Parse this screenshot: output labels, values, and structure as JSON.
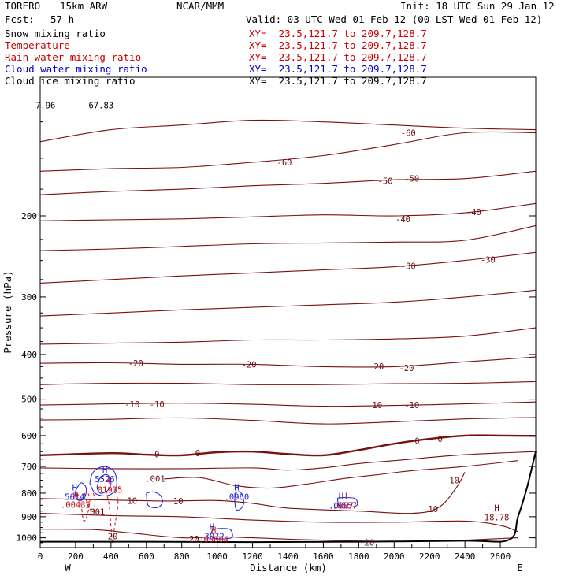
{
  "header": {
    "model": "TORERO",
    "resolution": "15km ARW",
    "center": "NCAR/MMM",
    "init": "Init: 18 UTC Sun 29 Jan 12",
    "fcst_label": "Fcst:",
    "fcst_value": "57 h",
    "valid": "Valid: 03 UTC Wed 01 Feb 12 (00 LST Wed 01 Feb 12)"
  },
  "fields": [
    {
      "label": "Snow mixing ratio",
      "xy": "XY=  23.5,121.7 to 209.7,128.7",
      "color": "#000000"
    },
    {
      "label": "Temperature",
      "xy": "XY=  23.5,121.7 to 209.7,128.7",
      "color": "#8b0000"
    },
    {
      "label": "Rain water mixing ratio",
      "xy": "XY=  23.5,121.7 to 209.7,128.7",
      "color": "#cc0000"
    },
    {
      "label": "Cloud water mixing ratio",
      "xy": "XY=  23.5,121.7 to 209.7,128.7",
      "color": "#0000cc"
    },
    {
      "label": "Cloud ice mixing ratio",
      "xy": "XY=  23.5,121.7 to 209.7,128.7",
      "color": "#000000"
    }
  ],
  "chart_data": {
    "type": "contour_cross_section",
    "xlabel": "Distance (km)",
    "ylabel": "Pressure (hPa)",
    "xlim": [
      0,
      2800
    ],
    "ylim": [
      1050,
      100
    ],
    "y_log": true,
    "x_ticks": [
      0,
      200,
      400,
      600,
      800,
      1000,
      1200,
      1400,
      1600,
      1800,
      2000,
      2200,
      2400,
      2600
    ],
    "x_tick_labels": [
      "0",
      "200",
      "400",
      "600",
      "800",
      "1000",
      "1200",
      "1400",
      "1600",
      "1800",
      "2000",
      "2200",
      "2400",
      "2600"
    ],
    "y_ticks": [
      200,
      300,
      400,
      500,
      600,
      700,
      800,
      900,
      1000
    ],
    "y_tick_labels": [
      "200",
      "300",
      "400",
      "500",
      "600",
      "700",
      "800",
      "900",
      "1000"
    ],
    "x_end_labels": {
      "left": "W",
      "right": "E"
    },
    "temperature_labels": [
      {
        "text": "-60",
        "x": 1380,
        "p": 153
      },
      {
        "text": "-60",
        "x": 2080,
        "p": 132
      },
      {
        "text": "-50",
        "x": 1950,
        "p": 168
      },
      {
        "text": "-50",
        "x": 2100,
        "p": 166
      },
      {
        "text": "-40",
        "x": 2050,
        "p": 203
      },
      {
        "text": "-40",
        "x": 2450,
        "p": 196
      },
      {
        "text": "-30",
        "x": 2080,
        "p": 257
      },
      {
        "text": "-30",
        "x": 2530,
        "p": 249
      },
      {
        "text": "-20",
        "x": 540,
        "p": 418
      },
      {
        "text": "-20",
        "x": 1180,
        "p": 420
      },
      {
        "text": "-20",
        "x": 1900,
        "p": 424
      },
      {
        "text": "-20",
        "x": 2070,
        "p": 428
      },
      {
        "text": "-10",
        "x": 520,
        "p": 513
      },
      {
        "text": "-10",
        "x": 660,
        "p": 513
      },
      {
        "text": "-10",
        "x": 1890,
        "p": 515
      },
      {
        "text": "-10",
        "x": 2100,
        "p": 515
      },
      {
        "text": "0",
        "x": 660,
        "p": 659
      },
      {
        "text": "0",
        "x": 890,
        "p": 654
      },
      {
        "text": "0",
        "x": 2130,
        "p": 616
      },
      {
        "text": "0",
        "x": 2260,
        "p": 610
      },
      {
        "text": "10",
        "x": 2340,
        "p": 750
      },
      {
        "text": "10",
        "x": 2220,
        "p": 865
      },
      {
        "text": "10",
        "x": 520,
        "p": 830
      },
      {
        "text": "10",
        "x": 780,
        "p": 832
      },
      {
        "text": "20",
        "x": 410,
        "p": 992
      },
      {
        "text": "20",
        "x": 870,
        "p": 1006
      },
      {
        "text": "20",
        "x": 1860,
        "p": 1023
      },
      {
        "text": ".001",
        "x": 650,
        "p": 744
      },
      {
        "text": ".001",
        "x": 310,
        "p": 878
      }
    ],
    "extrema": [
      {
        "text": "H",
        "value": "5526",
        "x": 365,
        "p": 740,
        "color": "blue"
      },
      {
        "text": "H",
        "value": ".01935",
        "x": 380,
        "p": 780,
        "color": "red"
      },
      {
        "text": "H",
        "value": "5614",
        "x": 195,
        "p": 808,
        "color": "blue"
      },
      {
        "text": "H",
        "value": ".00432",
        "x": 200,
        "p": 840,
        "color": "red"
      },
      {
        "text": "H",
        "value": ".0960",
        "x": 1110,
        "p": 808,
        "color": "blue"
      },
      {
        "text": "H",
        "value": ".0807",
        "x": 1700,
        "p": 843,
        "color": "blue"
      },
      {
        "text": "H",
        "value": ".0557",
        "x": 1720,
        "p": 843,
        "color": "red"
      },
      {
        "text": "H",
        "value": ".3072",
        "x": 970,
        "p": 983,
        "color": "blue"
      },
      {
        "text": "H",
        "value": ".00004",
        "x": 980,
        "p": 1000,
        "color": "red"
      },
      {
        "text": "H",
        "value": "18.78",
        "x": 2580,
        "p": 895,
        "color": "darkred"
      }
    ],
    "corner_values": [
      {
        "text": "7.96",
        "x": 30,
        "p": 115
      },
      {
        "text": "-67.83",
        "x": 330,
        "p": 115
      }
    ],
    "temperature_contours": [
      {
        "level": -60,
        "points": [
          [
            0,
            138
          ],
          [
            400,
            130
          ],
          [
            800,
            127
          ],
          [
            1200,
            124
          ],
          [
            1600,
            125
          ],
          [
            2000,
            127
          ],
          [
            2400,
            129
          ],
          [
            2800,
            130
          ]
        ]
      },
      {
        "level": -60,
        "points": [
          [
            0,
            160
          ],
          [
            400,
            158
          ],
          [
            800,
            157
          ],
          [
            1200,
            153
          ],
          [
            1600,
            148
          ],
          [
            2000,
            140
          ],
          [
            2400,
            132
          ],
          [
            2800,
            132
          ]
        ]
      },
      {
        "level": -55,
        "points": [
          [
            0,
            180
          ],
          [
            400,
            177
          ],
          [
            800,
            175
          ],
          [
            1200,
            172
          ],
          [
            1600,
            170
          ],
          [
            2000,
            167
          ],
          [
            2400,
            166
          ],
          [
            2800,
            160
          ]
        ]
      },
      {
        "level": -50,
        "points": [
          [
            0,
            205
          ],
          [
            400,
            204
          ],
          [
            800,
            203
          ],
          [
            1200,
            201
          ],
          [
            1600,
            199
          ],
          [
            2000,
            200
          ],
          [
            2400,
            197
          ],
          [
            2800,
            188
          ]
        ]
      },
      {
        "level": -40,
        "points": [
          [
            0,
            238
          ],
          [
            400,
            236
          ],
          [
            800,
            233
          ],
          [
            1200,
            230
          ],
          [
            1600,
            229
          ],
          [
            2000,
            228
          ],
          [
            2400,
            226
          ],
          [
            2800,
            210
          ]
        ]
      },
      {
        "level": -30,
        "points": [
          [
            0,
            280
          ],
          [
            400,
            275
          ],
          [
            800,
            270
          ],
          [
            1200,
            266
          ],
          [
            1600,
            262
          ],
          [
            2000,
            258
          ],
          [
            2400,
            250
          ],
          [
            2800,
            240
          ]
        ]
      },
      {
        "level": -25,
        "points": [
          [
            0,
            330
          ],
          [
            400,
            325
          ],
          [
            800,
            320
          ],
          [
            1200,
            316
          ],
          [
            1600,
            312
          ],
          [
            2000,
            308
          ],
          [
            2400,
            300
          ],
          [
            2800,
            290
          ]
        ]
      },
      {
        "level": -20,
        "points": [
          [
            0,
            380
          ],
          [
            400,
            378
          ],
          [
            800,
            376
          ],
          [
            1200,
            372
          ],
          [
            1600,
            372
          ],
          [
            2000,
            370
          ],
          [
            2400,
            365
          ],
          [
            2800,
            350
          ]
        ]
      },
      {
        "level": -20,
        "points": [
          [
            0,
            418
          ],
          [
            400,
            417
          ],
          [
            800,
            420
          ],
          [
            1200,
            420
          ],
          [
            1600,
            425
          ],
          [
            2000,
            425
          ],
          [
            2400,
            415
          ],
          [
            2800,
            405
          ]
        ]
      },
      {
        "level": -15,
        "points": [
          [
            0,
            465
          ],
          [
            400,
            462
          ],
          [
            800,
            462
          ],
          [
            1200,
            465
          ],
          [
            1600,
            465
          ],
          [
            2000,
            463
          ],
          [
            2400,
            462
          ],
          [
            2800,
            458
          ]
        ]
      },
      {
        "level": -10,
        "points": [
          [
            0,
            515
          ],
          [
            400,
            512
          ],
          [
            800,
            510
          ],
          [
            1200,
            513
          ],
          [
            1600,
            518
          ],
          [
            2000,
            516
          ],
          [
            2400,
            512
          ],
          [
            2800,
            507
          ]
        ]
      },
      {
        "level": -5,
        "points": [
          [
            0,
            555
          ],
          [
            400,
            553
          ],
          [
            800,
            549
          ],
          [
            1200,
            556
          ],
          [
            1600,
            566
          ],
          [
            2000,
            560
          ],
          [
            2400,
            552
          ],
          [
            2800,
            548
          ]
        ]
      },
      {
        "level": 0,
        "points": [
          [
            0,
            662
          ],
          [
            400,
            655
          ],
          [
            600,
            660
          ],
          [
            800,
            662
          ],
          [
            1000,
            652
          ],
          [
            1200,
            650
          ],
          [
            1400,
            658
          ],
          [
            1600,
            662
          ],
          [
            1800,
            645
          ],
          [
            2000,
            625
          ],
          [
            2200,
            610
          ],
          [
            2400,
            600
          ],
          [
            2600,
            600
          ],
          [
            2800,
            601
          ]
        ]
      },
      {
        "level": 5,
        "points": [
          [
            0,
            705
          ],
          [
            400,
            708
          ],
          [
            800,
            708
          ],
          [
            1200,
            705
          ],
          [
            1400,
            713
          ],
          [
            1600,
            705
          ],
          [
            1800,
            690
          ],
          [
            2000,
            680
          ],
          [
            2400,
            660
          ],
          [
            2800,
            650
          ]
        ]
      },
      {
        "level": 10,
        "points": [
          [
            700,
            745
          ],
          [
            900,
            740
          ],
          [
            1100,
            770
          ],
          [
            1300,
            780
          ],
          [
            1500,
            765
          ],
          [
            1700,
            745
          ],
          [
            1900,
            730
          ],
          [
            2100,
            715
          ],
          [
            2400,
            700
          ],
          [
            2700,
            680
          ]
        ]
      },
      {
        "level": 10,
        "points": [
          [
            0,
            822
          ],
          [
            400,
            828
          ],
          [
            700,
            832
          ],
          [
            1000,
            830
          ],
          [
            1200,
            842
          ],
          [
            1400,
            862
          ],
          [
            1800,
            875
          ],
          [
            2100,
            885
          ],
          [
            2250,
            860
          ],
          [
            2350,
            780
          ],
          [
            2400,
            720
          ]
        ]
      },
      {
        "level": 15,
        "points": [
          [
            0,
            885
          ],
          [
            400,
            895
          ],
          [
            800,
            900
          ],
          [
            1200,
            915
          ],
          [
            1600,
            925
          ],
          [
            2000,
            925
          ],
          [
            2400,
            920
          ],
          [
            2600,
            940
          ],
          [
            2700,
            970
          ]
        ]
      },
      {
        "level": 20,
        "points": [
          [
            0,
            958
          ],
          [
            300,
            960
          ],
          [
            500,
            975
          ],
          [
            800,
            1000
          ],
          [
            1000,
            995
          ],
          [
            1200,
            1000
          ],
          [
            1500,
            1010
          ],
          [
            1900,
            1018
          ],
          [
            2300,
            1015
          ],
          [
            2700,
            1000
          ]
        ]
      }
    ],
    "ground": [
      [
        0,
        1020
      ],
      [
        600,
        1020
      ],
      [
        1200,
        1022
      ],
      [
        1800,
        1020
      ],
      [
        2400,
        1015
      ],
      [
        2650,
        1010
      ],
      [
        2700,
        900
      ],
      [
        2750,
        780
      ],
      [
        2800,
        650
      ]
    ]
  }
}
